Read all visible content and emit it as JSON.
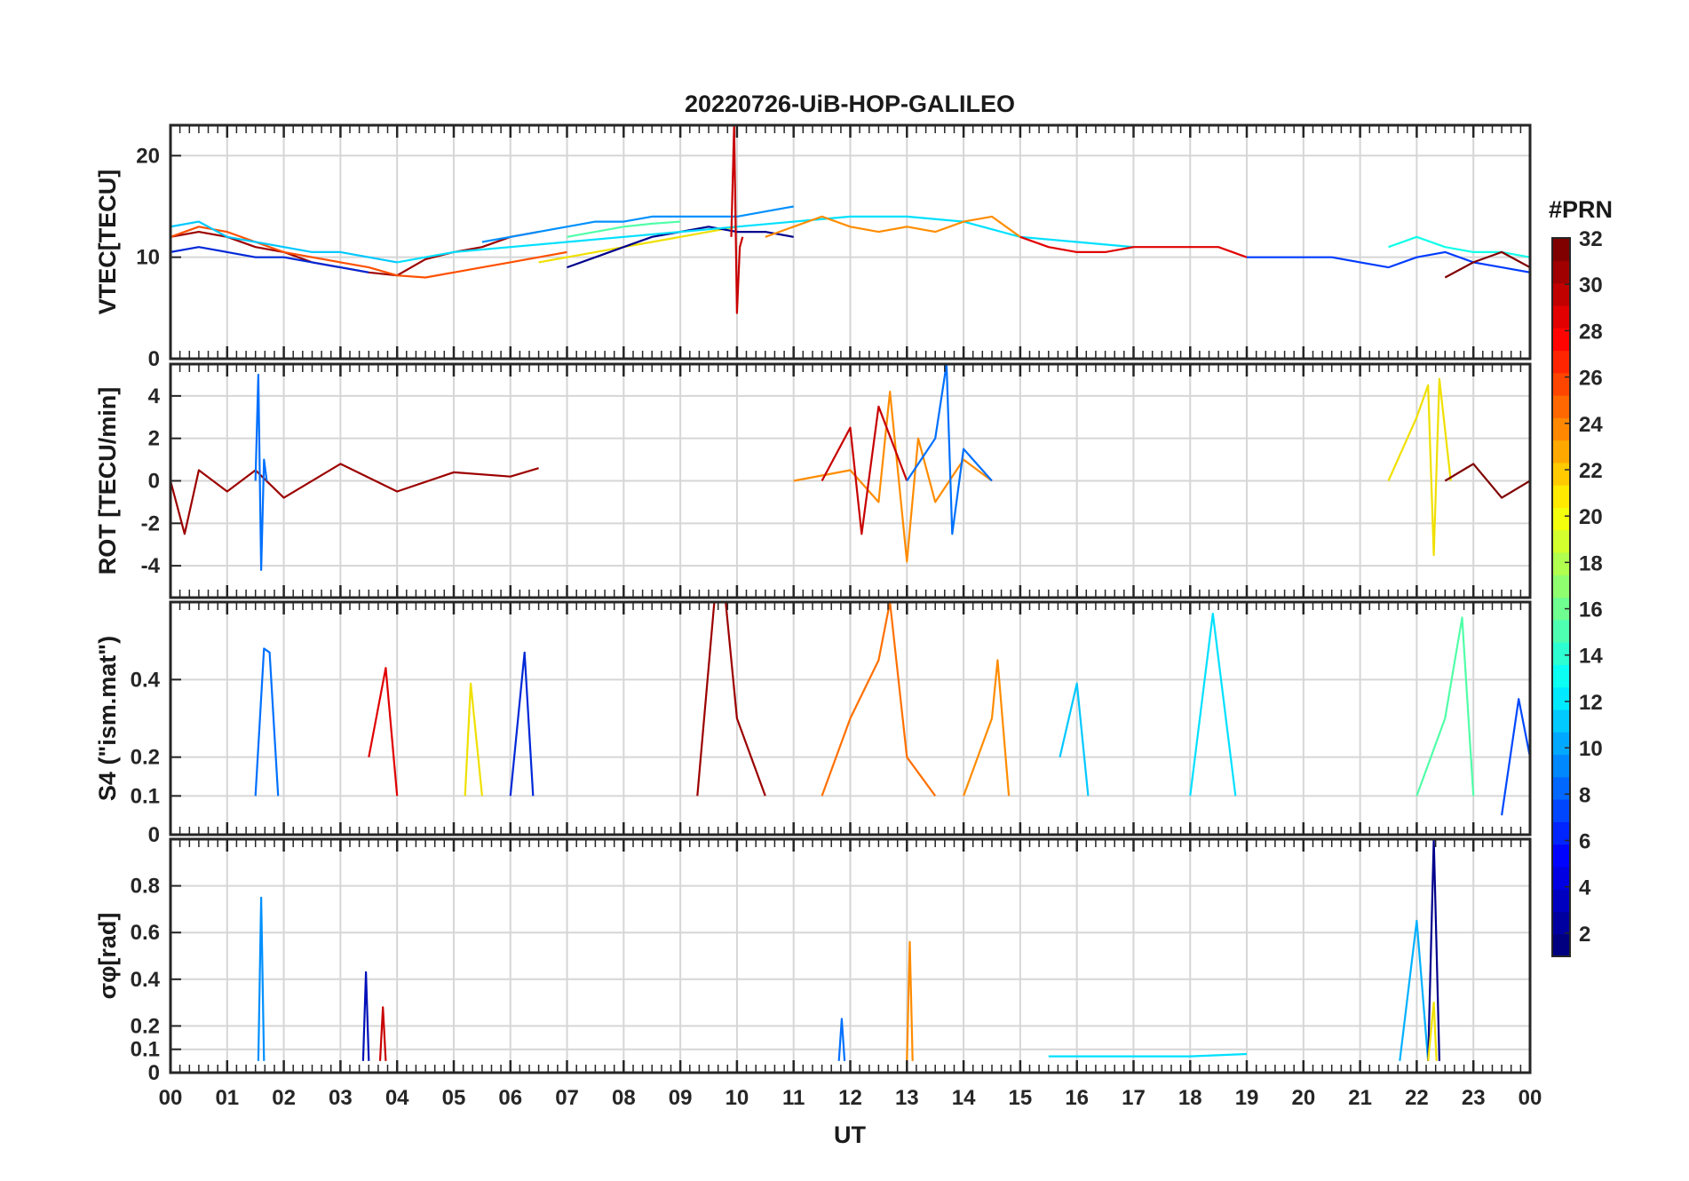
{
  "chart_data": {
    "type": "line",
    "title": "20220726-UiB-HOP-GALILEO",
    "xlabel": "UT",
    "x_tick_labels": [
      "00",
      "01",
      "02",
      "03",
      "04",
      "05",
      "06",
      "07",
      "08",
      "09",
      "10",
      "11",
      "12",
      "13",
      "14",
      "15",
      "16",
      "17",
      "18",
      "19",
      "20",
      "21",
      "22",
      "23",
      "00"
    ],
    "xlim": [
      0,
      24
    ],
    "grid": true,
    "colorbar": {
      "title": "#PRN",
      "range": [
        1,
        32
      ],
      "ticks": [
        "2",
        "4",
        "6",
        "8",
        "10",
        "12",
        "14",
        "16",
        "18",
        "20",
        "22",
        "24",
        "26",
        "28",
        "30",
        "32"
      ],
      "colormap": "jet"
    },
    "panels": [
      {
        "ylabel": "VTEC[TECU]",
        "ylim": [
          0,
          23
        ],
        "y_ticks": [
          0,
          10,
          20
        ],
        "y_tick_labels": [
          "0",
          "10",
          "20"
        ],
        "series": [
          {
            "prn": 31,
            "color": "#9c0000",
            "x": [
              0,
              0.5,
              1,
              1.5,
              2,
              2.5,
              3,
              3.5,
              4,
              4.5,
              5,
              5.5,
              6,
              6.5
            ],
            "y": [
              12,
              12.5,
              12,
              11,
              10.5,
              9.5,
              9,
              8.5,
              8.2,
              9.8,
              10.5,
              11,
              12,
              12.5
            ]
          },
          {
            "prn": 26,
            "color": "#ff5000",
            "x": [
              0,
              0.5,
              1,
              1.5,
              2,
              2.5,
              3,
              3.5,
              4,
              4.5,
              5,
              5.5,
              6,
              6.5,
              7
            ],
            "y": [
              12,
              13,
              12.5,
              11.5,
              10.5,
              10,
              9.5,
              9,
              8.2,
              8,
              8.5,
              9,
              9.5,
              10,
              10.5
            ]
          },
          {
            "prn": 11,
            "color": "#00c8ff",
            "x": [
              0,
              0.5,
              1,
              1.5,
              2,
              2.5,
              3,
              3.5,
              4
            ],
            "y": [
              13,
              13.5,
              12,
              11.5,
              11,
              10.5,
              10.5,
              10,
              9.5
            ]
          },
          {
            "prn": 4,
            "color": "#0028d8",
            "x": [
              0,
              0.5,
              1,
              1.5,
              2,
              2.5,
              3,
              3.5
            ],
            "y": [
              10.5,
              11,
              10.5,
              10,
              10,
              9.5,
              9,
              8.5
            ]
          },
          {
            "prn": 20,
            "color": "#f0e000",
            "x": [
              6.5,
              7,
              7.5,
              8,
              8.5,
              9,
              9.5,
              10
            ],
            "y": [
              9.5,
              10,
              10.5,
              11,
              11.5,
              12,
              12.5,
              13
            ]
          },
          {
            "prn": 15,
            "color": "#50ffa8",
            "x": [
              7,
              7.5,
              8,
              8.5,
              9
            ],
            "y": [
              12,
              12.5,
              13,
              13.3,
              13.5
            ]
          },
          {
            "prn": 9,
            "color": "#0090ff",
            "x": [
              5.5,
              6,
              6.5,
              7,
              7.5,
              8,
              8.5,
              9,
              9.5,
              10,
              10.5,
              11
            ],
            "y": [
              11.5,
              12,
              12.5,
              13,
              13.5,
              13.5,
              14,
              14,
              14,
              14,
              14.5,
              15
            ]
          },
          {
            "prn": 2,
            "color": "#00008c",
            "x": [
              7,
              7.5,
              8,
              8.5,
              9,
              9.5,
              10,
              10.5,
              11
            ],
            "y": [
              9,
              10,
              11,
              12,
              12.5,
              13,
              12.5,
              12.5,
              12
            ]
          },
          {
            "prn": 12,
            "color": "#00e0ff",
            "x": [
              4,
              5,
              6,
              7,
              8,
              9,
              10,
              11,
              12,
              13,
              14,
              15,
              16,
              17
            ],
            "y": [
              9.5,
              10.5,
              11,
              11.5,
              12,
              12.5,
              13,
              13.5,
              14,
              14,
              13.5,
              12,
              11.5,
              11
            ]
          },
          {
            "prn": 30,
            "color": "#c80000",
            "x": [
              9.9,
              9.95,
              10,
              10.05,
              10.1
            ],
            "y": [
              12,
              23,
              4.5,
              11,
              12
            ]
          },
          {
            "prn": 24,
            "color": "#ff8c00",
            "x": [
              10.5,
              11,
              11.5,
              12,
              12.5,
              13,
              13.5,
              14,
              14.5,
              15
            ],
            "y": [
              12,
              13,
              14,
              13,
              12.5,
              13,
              12.5,
              13.5,
              14,
              12
            ]
          },
          {
            "prn": 29,
            "color": "#e00000",
            "x": [
              15,
              15.5,
              16,
              16.5,
              17,
              17.5,
              18,
              18.5,
              19
            ],
            "y": [
              12,
              11,
              10.5,
              10.5,
              11,
              11,
              11,
              11,
              10
            ]
          },
          {
            "prn": 5,
            "color": "#003cff",
            "x": [
              19,
              19.5,
              20,
              20.5,
              21,
              21.5,
              22,
              22.5,
              23,
              23.5,
              24
            ],
            "y": [
              10,
              10,
              10,
              10,
              9.5,
              9,
              10,
              10.5,
              9.5,
              9,
              8.5
            ]
          },
          {
            "prn": 13,
            "color": "#10ffe8",
            "x": [
              21.5,
              22,
              22.5,
              23,
              23.5,
              24
            ],
            "y": [
              11,
              12,
              11,
              10.5,
              10.5,
              10
            ]
          },
          {
            "prn": 32,
            "color": "#800000",
            "x": [
              22.5,
              23,
              23.5,
              24
            ],
            "y": [
              8,
              9.5,
              10.5,
              9
            ]
          }
        ]
      },
      {
        "ylabel": "ROT [TECU/min]",
        "ylim": [
          -5.5,
          5.5
        ],
        "y_ticks": [
          -4,
          -2,
          0,
          2,
          4
        ],
        "y_tick_labels": [
          "-4",
          "-2",
          "0",
          "2",
          "4"
        ],
        "series": [
          {
            "prn": 31,
            "color": "#9c0000",
            "x": [
              0,
              0.25,
              0.5,
              1,
              1.5,
              2,
              3,
              4,
              5,
              6,
              6.5
            ],
            "y": [
              0,
              -2.5,
              0.5,
              -0.5,
              0.5,
              -0.8,
              0.8,
              -0.5,
              0.4,
              0.2,
              0.6
            ]
          },
          {
            "prn": 8,
            "color": "#0070ff",
            "x": [
              1.5,
              1.55,
              1.6,
              1.65,
              1.7
            ],
            "y": [
              0,
              5,
              -4.2,
              1,
              0
            ]
          },
          {
            "prn": 24,
            "color": "#ff8c00",
            "x": [
              11,
              12,
              12.5,
              12.7,
              13,
              13.2,
              13.5,
              14,
              14.5
            ],
            "y": [
              0,
              0.5,
              -1,
              4.2,
              -3.8,
              2,
              -1,
              1,
              0
            ]
          },
          {
            "prn": 30,
            "color": "#c80000",
            "x": [
              11.5,
              12,
              12.2,
              12.5,
              13
            ],
            "y": [
              0,
              2.5,
              -2.5,
              3.5,
              0
            ]
          },
          {
            "prn": 8,
            "color": "#0070ff",
            "x": [
              13,
              13.5,
              13.7,
              13.8,
              14,
              14.5
            ],
            "y": [
              0,
              2,
              5.5,
              -2.5,
              1.5,
              0
            ]
          },
          {
            "prn": 19,
            "color": "#f0e000",
            "x": [
              21.5,
              22,
              22.2,
              22.3,
              22.4,
              22.6
            ],
            "y": [
              0,
              3,
              4.5,
              -3.5,
              4.8,
              0
            ]
          },
          {
            "prn": 32,
            "color": "#800000",
            "x": [
              22.5,
              23,
              23.5,
              24
            ],
            "y": [
              0,
              0.8,
              -0.8,
              0
            ]
          }
        ]
      },
      {
        "ylabel": "S4 (\"ism.mat\")",
        "ylim": [
          0,
          0.6
        ],
        "y_ticks": [
          0,
          0.1,
          0.2,
          0.4
        ],
        "y_tick_labels": [
          "0",
          "0.1",
          "0.2",
          "0.4"
        ],
        "series": [
          {
            "prn": 8,
            "color": "#0070ff",
            "x": [
              1.5,
              1.65,
              1.75,
              1.9
            ],
            "y": [
              0.1,
              0.48,
              0.47,
              0.1
            ]
          },
          {
            "prn": 29,
            "color": "#e00000",
            "x": [
              3.5,
              3.8,
              4
            ],
            "y": [
              0.2,
              0.43,
              0.1
            ]
          },
          {
            "prn": 20,
            "color": "#f0e000",
            "x": [
              5.2,
              5.3,
              5.5
            ],
            "y": [
              0.1,
              0.39,
              0.1
            ]
          },
          {
            "prn": 4,
            "color": "#0028d8",
            "x": [
              6,
              6.25,
              6.4
            ],
            "y": [
              0.1,
              0.47,
              0.1
            ]
          },
          {
            "prn": 31,
            "color": "#9c0000",
            "x": [
              9.3,
              9.6,
              9.8,
              10,
              10.5
            ],
            "y": [
              0.1,
              0.6,
              0.6,
              0.3,
              0.1
            ]
          },
          {
            "prn": 25,
            "color": "#ff7000",
            "x": [
              11.5,
              12,
              12.5,
              12.7,
              13,
              13.5
            ],
            "y": [
              0.1,
              0.3,
              0.45,
              0.6,
              0.2,
              0.1
            ]
          },
          {
            "prn": 24,
            "color": "#ff8c00",
            "x": [
              14,
              14.5,
              14.6,
              14.8
            ],
            "y": [
              0.1,
              0.3,
              0.45,
              0.1
            ]
          },
          {
            "prn": 11,
            "color": "#00c8ff",
            "x": [
              15.7,
              16,
              16.2
            ],
            "y": [
              0.2,
              0.39,
              0.1
            ]
          },
          {
            "prn": 12,
            "color": "#00e0ff",
            "x": [
              18,
              18.4,
              18.8
            ],
            "y": [
              0.1,
              0.57,
              0.1
            ]
          },
          {
            "prn": 15,
            "color": "#50ffa8",
            "x": [
              22,
              22.5,
              22.8,
              23
            ],
            "y": [
              0.1,
              0.3,
              0.56,
              0.1
            ]
          },
          {
            "prn": 6,
            "color": "#0048ff",
            "x": [
              23.5,
              23.8,
              24
            ],
            "y": [
              0.05,
              0.35,
              0.2
            ]
          }
        ]
      },
      {
        "ylabel": "σφ[rad]",
        "ylim": [
          0,
          1.0
        ],
        "y_ticks": [
          0,
          0.1,
          0.2,
          0.4,
          0.6,
          0.8
        ],
        "y_tick_labels": [
          "0",
          "0.1",
          "0.2",
          "0.4",
          "0.6",
          "0.8"
        ],
        "series": [
          {
            "prn": 9,
            "color": "#0090ff",
            "x": [
              1.55,
              1.6,
              1.65
            ],
            "y": [
              0.05,
              0.75,
              0.05
            ]
          },
          {
            "prn": 3,
            "color": "#0010b8",
            "x": [
              3.4,
              3.45,
              3.5
            ],
            "y": [
              0.05,
              0.43,
              0.05
            ]
          },
          {
            "prn": 30,
            "color": "#c80000",
            "x": [
              3.7,
              3.75,
              3.8
            ],
            "y": [
              0.05,
              0.28,
              0.05
            ]
          },
          {
            "prn": 24,
            "color": "#ff8c00",
            "x": [
              13,
              13.05,
              13.1
            ],
            "y": [
              0.05,
              0.56,
              0.05
            ]
          },
          {
            "prn": 8,
            "color": "#0070ff",
            "x": [
              11.8,
              11.85,
              11.9
            ],
            "y": [
              0.05,
              0.23,
              0.05
            ]
          },
          {
            "prn": 10,
            "color": "#00b0ff",
            "x": [
              21.7,
              22,
              22.2
            ],
            "y": [
              0.05,
              0.65,
              0.05
            ]
          },
          {
            "prn": 1,
            "color": "#00008c",
            "x": [
              22.2,
              22.3,
              22.4
            ],
            "y": [
              0.05,
              1.0,
              0.05
            ]
          },
          {
            "prn": 20,
            "color": "#f0e000",
            "x": [
              22.2,
              22.3,
              22.35
            ],
            "y": [
              0.05,
              0.3,
              0.05
            ]
          },
          {
            "prn": 12,
            "color": "#00e0ff",
            "x": [
              15.5,
              18,
              19
            ],
            "y": [
              0.07,
              0.07,
              0.08
            ]
          }
        ]
      }
    ]
  }
}
